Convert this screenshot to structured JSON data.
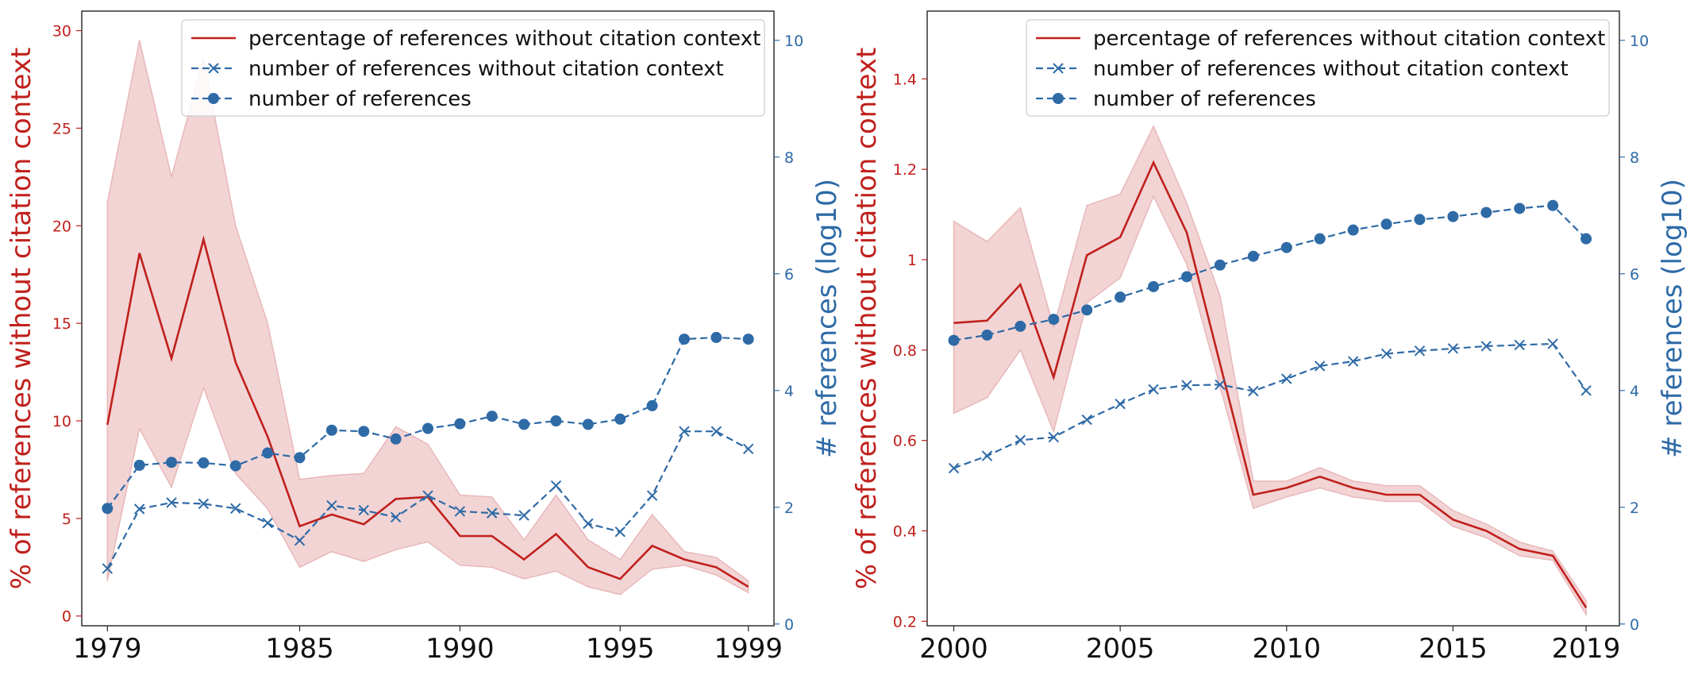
{
  "colors": {
    "red": "#c0201c",
    "blue": "#2e6aa6",
    "band": "#e9b7b9"
  },
  "legend": {
    "placement": "top-right",
    "entries": [
      {
        "label": "percentage of references without citation context",
        "style": "solid-line",
        "color": "#c0201c"
      },
      {
        "label": "number of references without citation context",
        "style": "dashed-x",
        "color": "#2e6aa6"
      },
      {
        "label": "number of references",
        "style": "dashed-circle",
        "color": "#2e6aa6"
      }
    ]
  },
  "chart_data": [
    {
      "type": "line",
      "ylabel_left": "% of references without citation context",
      "ylabel_right": "# references (log10)",
      "xlim": [
        1978.2,
        1999.8
      ],
      "ylim_left": [
        -0.5,
        31
      ],
      "ylim_right": [
        -0.03,
        10.5
      ],
      "xticks": [
        1979,
        1985,
        1990,
        1995,
        1999
      ],
      "yticks_left": [
        0,
        5,
        10,
        15,
        20,
        25,
        30
      ],
      "yticks_right": [
        0,
        2,
        4,
        6,
        8,
        10
      ],
      "x": [
        1979,
        1980,
        1981,
        1982,
        1983,
        1984,
        1985,
        1986,
        1987,
        1988,
        1989,
        1990,
        1991,
        1992,
        1993,
        1994,
        1995,
        1996,
        1997,
        1998,
        1999
      ],
      "series": [
        {
          "name": "percentage of references without citation context",
          "axis": "left",
          "values": [
            9.8,
            18.6,
            13.2,
            19.3,
            13.0,
            9.2,
            4.6,
            5.2,
            4.7,
            6.0,
            6.1,
            4.1,
            4.1,
            2.9,
            4.2,
            2.5,
            1.9,
            3.6,
            2.9,
            2.5,
            1.5
          ]
        },
        {
          "name": "number of references without citation context",
          "axis": "right",
          "values": [
            0.95,
            1.97,
            2.08,
            2.06,
            1.98,
            1.73,
            1.43,
            2.03,
            1.95,
            1.83,
            2.2,
            1.93,
            1.9,
            1.86,
            2.37,
            1.72,
            1.58,
            2.2,
            3.3,
            3.3,
            3.0
          ]
        },
        {
          "name": "number of references",
          "axis": "right",
          "values": [
            1.98,
            2.72,
            2.77,
            2.76,
            2.71,
            2.93,
            2.85,
            3.32,
            3.3,
            3.17,
            3.35,
            3.43,
            3.56,
            3.42,
            3.48,
            3.42,
            3.51,
            3.74,
            4.88,
            4.91,
            4.88
          ]
        }
      ],
      "band_upper": [
        21.2,
        29.5,
        22.5,
        28.6,
        20.0,
        15.0,
        7.0,
        7.2,
        7.3,
        9.7,
        8.8,
        6.2,
        6.1,
        3.9,
        6.2,
        3.9,
        2.9,
        5.2,
        3.3,
        3.0,
        1.8
      ],
      "band_lower": [
        1.8,
        9.6,
        6.6,
        11.7,
        7.3,
        5.5,
        2.5,
        3.3,
        2.8,
        3.4,
        3.8,
        2.6,
        2.5,
        1.9,
        2.3,
        1.5,
        1.1,
        2.4,
        2.6,
        2.1,
        1.2
      ]
    },
    {
      "type": "line",
      "ylabel_left": "% of references without citation context",
      "ylabel_right": "# references (log10)",
      "xlim": [
        1999.2,
        2020.0
      ],
      "ylim_left": [
        0.19,
        1.55
      ],
      "ylim_right": [
        -0.03,
        10.5
      ],
      "xticks": [
        2000,
        2005,
        2010,
        2015,
        2019
      ],
      "yticks_left": [
        0.2,
        0.4,
        0.6,
        0.8,
        1.0,
        1.2,
        1.4
      ],
      "yticks_right": [
        0,
        2,
        4,
        6,
        8,
        10
      ],
      "x": [
        2000,
        2001,
        2002,
        2003,
        2004,
        2005,
        2006,
        2007,
        2008,
        2009,
        2010,
        2011,
        2012,
        2013,
        2014,
        2015,
        2016,
        2017,
        2018,
        2019
      ],
      "series": [
        {
          "name": "percentage of references without citation context",
          "axis": "left",
          "values": [
            0.86,
            0.865,
            0.945,
            0.74,
            1.01,
            1.05,
            1.215,
            1.06,
            0.77,
            0.48,
            0.495,
            0.52,
            0.495,
            0.48,
            0.48,
            0.425,
            0.4,
            0.36,
            0.345,
            0.23
          ]
        },
        {
          "name": "number of references without citation context",
          "axis": "right",
          "values": [
            2.67,
            2.88,
            3.15,
            3.2,
            3.5,
            3.77,
            4.02,
            4.09,
            4.1,
            3.99,
            4.2,
            4.42,
            4.5,
            4.63,
            4.68,
            4.72,
            4.76,
            4.78,
            4.8,
            4.0
          ]
        },
        {
          "name": "number of references",
          "axis": "right",
          "values": [
            4.86,
            4.95,
            5.1,
            5.22,
            5.38,
            5.6,
            5.78,
            5.95,
            6.15,
            6.3,
            6.45,
            6.6,
            6.75,
            6.85,
            6.93,
            6.98,
            7.05,
            7.12,
            7.17,
            6.6
          ]
        }
      ],
      "band_upper": [
        1.085,
        1.04,
        1.115,
        0.85,
        1.12,
        1.145,
        1.295,
        1.125,
        0.92,
        0.51,
        0.51,
        0.54,
        0.51,
        0.5,
        0.5,
        0.445,
        0.415,
        0.375,
        0.355,
        0.245
      ],
      "band_lower": [
        0.66,
        0.695,
        0.8,
        0.62,
        0.905,
        0.96,
        1.14,
        0.99,
        0.72,
        0.45,
        0.475,
        0.495,
        0.475,
        0.465,
        0.465,
        0.41,
        0.385,
        0.345,
        0.335,
        0.215
      ]
    }
  ]
}
